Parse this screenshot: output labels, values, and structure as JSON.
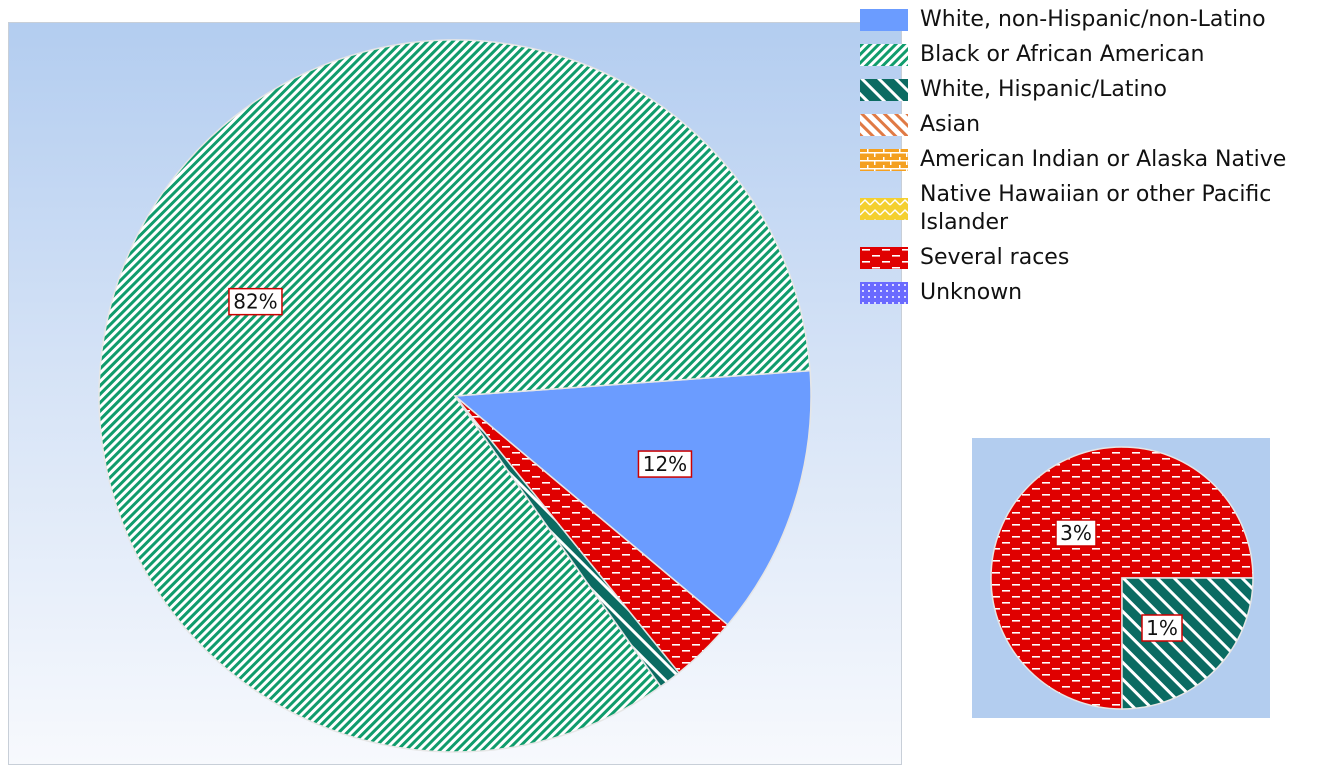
{
  "chart_data": [
    {
      "type": "pie",
      "title": "",
      "slices": [
        {
          "name": "White, non-Hispanic/non-Latino",
          "value": 12,
          "label": "12%",
          "color": "#6b9cff",
          "pattern": "solid"
        },
        {
          "name": "Black or African American",
          "value": 82,
          "label": "82%",
          "color": "#109c6c",
          "pattern": "diag-fine"
        },
        {
          "name": "White, Hispanic/Latino",
          "value": 1,
          "label": "",
          "color": "#0b6b62",
          "pattern": "diag-wide"
        },
        {
          "name": "Asian",
          "value": 0,
          "label": "",
          "color": "#e07a45",
          "pattern": "diag-wide"
        },
        {
          "name": "American Indian or Alaska Native",
          "value": 0,
          "label": "",
          "color": "#f4a020",
          "pattern": "brick"
        },
        {
          "name": "Native Hawaiian or other Pacific Islander",
          "value": 0,
          "label": "",
          "color": "#f4d030",
          "pattern": "zigzag"
        },
        {
          "name": "Several races",
          "value": 3,
          "label": "",
          "color": "#e00000",
          "pattern": "dash"
        },
        {
          "name": "Unknown",
          "value": 0,
          "label": "",
          "color": "#6a6aff",
          "pattern": "dots"
        }
      ],
      "legend": "top-right"
    },
    {
      "type": "pie",
      "title": "",
      "note": "breakdown of small slices",
      "slices": [
        {
          "name": "Several races",
          "value": 3,
          "label": "3%",
          "color": "#e00000",
          "pattern": "dash"
        },
        {
          "name": "White, Hispanic/Latino",
          "value": 1,
          "label": "1%",
          "color": "#0b6b62",
          "pattern": "diag-wide"
        }
      ]
    }
  ],
  "legend": [
    {
      "label": "White, non-Hispanic/non-Latino",
      "pattern": "solid",
      "color": "#6b9cff"
    },
    {
      "label": "Black or African American",
      "pattern": "diag-fine",
      "color": "#109c6c"
    },
    {
      "label": "White, Hispanic/Latino",
      "pattern": "diag-wide",
      "color": "#0b6b62"
    },
    {
      "label": "Asian",
      "pattern": "diag-wide",
      "color": "#e07a45"
    },
    {
      "label": "American Indian or Alaska Native",
      "pattern": "brick",
      "color": "#f4a020"
    },
    {
      "label": "Native Hawaiian or other Pacific Islander",
      "pattern": "zigzag",
      "color": "#f4d030"
    },
    {
      "label": "Several races",
      "pattern": "dash",
      "color": "#e00000"
    },
    {
      "label": "Unknown",
      "pattern": "dots",
      "color": "#6a6aff"
    }
  ]
}
